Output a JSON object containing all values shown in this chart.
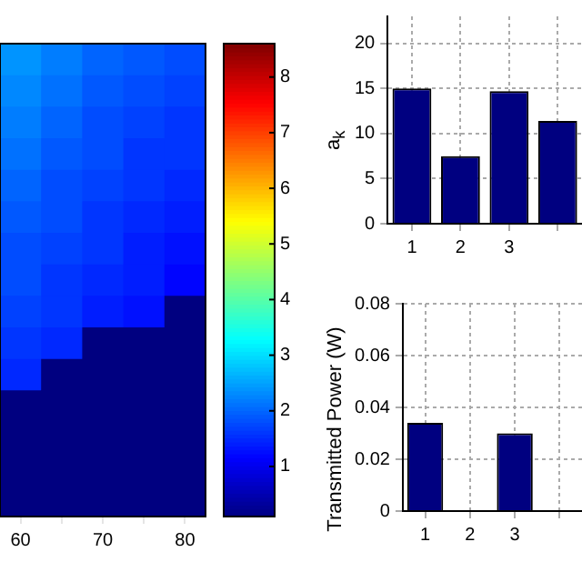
{
  "chart_data": [
    {
      "type": "heatmap",
      "categories": [
        "60",
        null,
        "70",
        null,
        "80"
      ],
      "tick_labels": "x",
      "y_categories": [
        null,
        null,
        null,
        null,
        null,
        null,
        null,
        null,
        null,
        null,
        null,
        null,
        null,
        null,
        null
      ],
      "cells": [
        [
          2.4,
          2.2,
          2.0,
          1.9,
          1.8
        ],
        [
          2.3,
          2.1,
          1.9,
          1.8,
          1.7
        ],
        [
          2.2,
          2.0,
          1.8,
          1.7,
          1.6
        ],
        [
          2.1,
          1.9,
          1.8,
          1.6,
          1.6
        ],
        [
          2.0,
          1.8,
          1.7,
          1.6,
          1.5
        ],
        [
          1.9,
          1.8,
          1.6,
          1.5,
          1.4
        ],
        [
          1.8,
          1.7,
          1.6,
          1.4,
          1.3
        ],
        [
          1.8,
          1.6,
          1.5,
          1.4,
          1.2
        ],
        [
          1.7,
          1.6,
          1.4,
          1.3,
          0.1
        ],
        [
          1.6,
          1.5,
          0.1,
          0.1,
          0.1
        ],
        [
          1.5,
          0.1,
          0.1,
          0.1,
          0.1
        ],
        [
          0.1,
          0.1,
          0.1,
          0.1,
          0.1
        ],
        [
          0.1,
          0.1,
          0.1,
          0.1,
          0.1
        ],
        [
          0.1,
          0.1,
          0.1,
          0.1,
          0.1
        ],
        [
          0.1,
          0.1,
          0.1,
          0.1,
          0.1
        ]
      ],
      "clim": [
        0.1,
        8.6
      ],
      "cticks": [
        1,
        2,
        3,
        4,
        5,
        6,
        7,
        8
      ]
    },
    {
      "type": "bar",
      "categories": [
        "1",
        "2",
        "3",
        null
      ],
      "values": [
        15,
        7.5,
        14.7,
        11.4
      ],
      "color": "#000080",
      "ylabel": "a$_{k}$",
      "ylim": [
        0,
        23
      ],
      "yticks": [
        0,
        5,
        10,
        15,
        20
      ],
      "grid": true
    },
    {
      "type": "bar",
      "categories": [
        "1",
        "2",
        "3",
        null
      ],
      "values": [
        0.034,
        0,
        0.03,
        null
      ],
      "color": "#000080",
      "ylabel": "Transmitted Power (W)",
      "ylim": [
        0,
        0.08
      ],
      "yticks": [
        0,
        0.02,
        0.04,
        0.06,
        0.08
      ],
      "grid": true
    }
  ]
}
